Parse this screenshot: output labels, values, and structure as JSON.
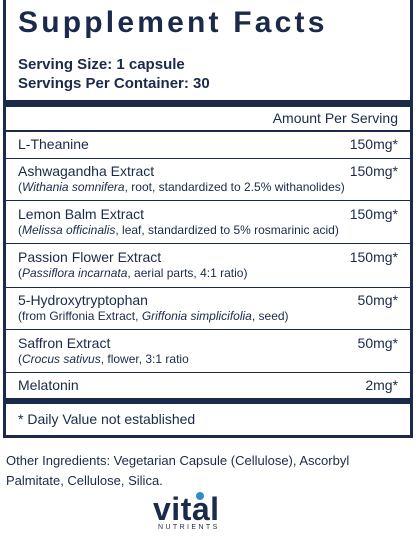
{
  "title": "Supplement Facts",
  "serving_size": "Serving Size: 1 capsule",
  "servings_per_container": "Servings Per Container: 30",
  "amount_header": "Amount Per Serving",
  "ingredients": [
    {
      "name": "L-Theanine",
      "amount": "150mg*"
    },
    {
      "name": "Ashwagandha Extract",
      "amount": "150mg*",
      "sub_pre": "(",
      "sub_italic": "Withania somnifera",
      "sub_post": ", root, standardized to 2.5% withanolides)"
    },
    {
      "name": "Lemon Balm Extract",
      "amount": "150mg*",
      "sub_pre": "(",
      "sub_italic": "Melissa officinalis",
      "sub_post": ", leaf, standardized to 5% rosmarinic acid)"
    },
    {
      "name": "Passion Flower Extract",
      "amount": "150mg*",
      "sub_pre": "(",
      "sub_italic": "Passiflora incarnata",
      "sub_post": ", aerial parts, 4:1 ratio)"
    },
    {
      "name": "5-Hydroxytryptophan",
      "amount": "50mg*",
      "sub_pre": "(from Griffonia Extract, ",
      "sub_italic": "Griffonia simplicifolia",
      "sub_post": ", seed)"
    },
    {
      "name": "Saffron Extract",
      "amount": "50mg*",
      "sub_pre": "(",
      "sub_italic": "Crocus sativus",
      "sub_post": ", flower, 3:1 ratio"
    },
    {
      "name": "Melatonin",
      "amount": "2mg*"
    }
  ],
  "daily_value_note": "* Daily Value not established",
  "other_ingredients": "Other Ingredients: Vegetarian Capsule (Cellulose), Ascorbyl Palmitate, Cellulose, Silica.",
  "logo": {
    "word": "vital",
    "sub": "NUTRIENTS",
    "dot_color": "#2b8ec8"
  },
  "colors": {
    "navy": "#1b2a4a"
  }
}
